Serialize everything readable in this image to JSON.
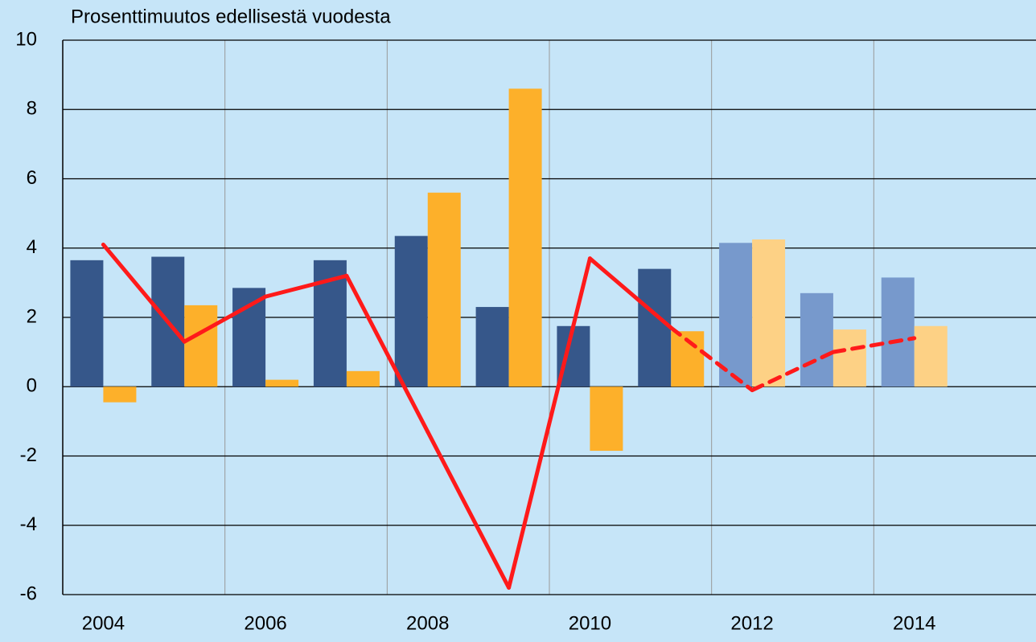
{
  "chart_data": {
    "type": "bar_line",
    "subtitle": "Prosenttimuutos edellisestä vuodesta",
    "categories": [
      "2004",
      null,
      "2006",
      null,
      "2008",
      null,
      "2010",
      null,
      "2012",
      null,
      "2014",
      null
    ],
    "series": [
      {
        "kind": "bar",
        "values": [
          3.65,
          3.75,
          2.85,
          3.65,
          4.35,
          2.3,
          1.75,
          3.4,
          4.15,
          2.7,
          3.15,
          null
        ],
        "colors": [
          "#36578a",
          "#36578a",
          "#36578a",
          "#36578a",
          "#36578a",
          "#36578a",
          "#36578a",
          "#36578a",
          "#7799cc",
          "#7799cc",
          "#7799cc",
          "#7799cc"
        ]
      },
      {
        "kind": "bar",
        "values": [
          -0.45,
          2.35,
          0.2,
          0.45,
          5.6,
          8.6,
          -1.85,
          1.6,
          4.25,
          1.65,
          1.75,
          null
        ],
        "colors": [
          "#fdb02a",
          "#fdb02a",
          "#fdb02a",
          "#fdb02a",
          "#fdb02a",
          "#fdb02a",
          "#fdb02a",
          "#fdb02a",
          "#fdd185",
          "#fdd185",
          "#fdd185",
          "#fdd185"
        ]
      },
      {
        "kind": "line",
        "color": "#ff1a1a",
        "values": [
          4.1,
          1.3,
          2.6,
          3.2,
          -1.3,
          -5.8,
          3.7,
          1.7,
          -0.1,
          1.0,
          1.4,
          null
        ],
        "dashed": [
          false,
          false,
          false,
          false,
          false,
          false,
          false,
          false,
          true,
          true,
          true,
          true
        ]
      }
    ],
    "ylim": [
      -6,
      10
    ],
    "yticks": [
      -6,
      -4,
      -2,
      0,
      2,
      4,
      6,
      8,
      10
    ],
    "grid": true
  }
}
